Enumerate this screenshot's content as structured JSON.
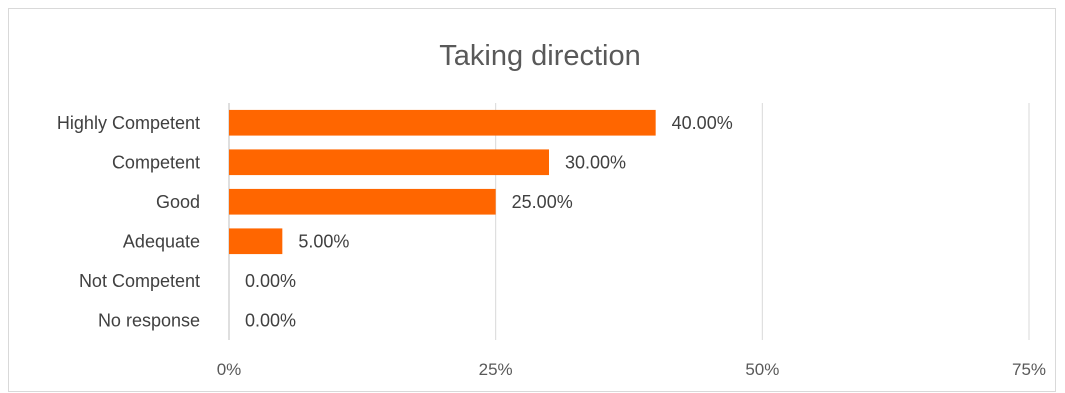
{
  "chart_data": {
    "type": "bar",
    "orientation": "horizontal",
    "title": "Taking direction",
    "categories": [
      "Highly Competent",
      "Competent",
      "Good",
      "Adequate",
      "Not Competent",
      "No response"
    ],
    "values": [
      40,
      30,
      25,
      5,
      0,
      0
    ],
    "data_labels": [
      "40.00%",
      "30.00%",
      "25.00%",
      "5.00%",
      "0.00%",
      "0.00%"
    ],
    "x_ticks": [
      "0%",
      "25%",
      "50%",
      "75%"
    ],
    "x_tick_values": [
      0,
      25,
      50,
      75
    ],
    "xlim": [
      0,
      75
    ],
    "grid": true,
    "bar_color": "#FF6600",
    "legend": "none"
  }
}
